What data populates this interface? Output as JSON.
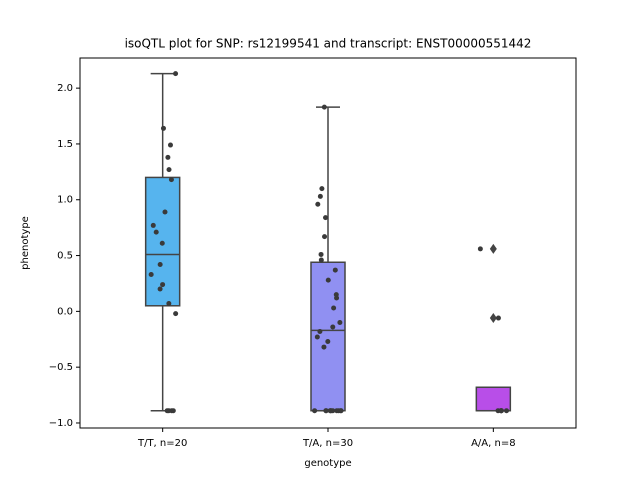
{
  "chart_data": {
    "type": "box",
    "title": "isoQTL plot for SNP: rs12199541 and transcript: ENST00000551442",
    "xlabel": "genotype",
    "ylabel": "phenotype",
    "categories": [
      "T/T, n=20",
      "T/A, n=30",
      "A/A, n=8"
    ],
    "ylim": [
      -1.045,
      2.27
    ],
    "yticks": [
      {
        "value": -1.0,
        "label": "−1.0"
      },
      {
        "value": -0.5,
        "label": "−0.5"
      },
      {
        "value": 0.0,
        "label": "0.0"
      },
      {
        "value": 0.5,
        "label": "0.5"
      },
      {
        "value": 1.0,
        "label": "1.0"
      },
      {
        "value": 1.5,
        "label": "1.5"
      },
      {
        "value": 2.0,
        "label": "2.0"
      }
    ],
    "boxes": [
      {
        "color": "#56b4ee",
        "whislo": -0.89,
        "q1": 0.05,
        "med": 0.51,
        "q3": 1.2,
        "whishi": 2.13,
        "outliers": [],
        "points": [
          2.13,
          1.64,
          1.49,
          1.38,
          1.27,
          1.18,
          0.89,
          0.77,
          0.71,
          0.61,
          0.42,
          0.33,
          0.24,
          0.2,
          0.07,
          -0.02,
          -0.89,
          -0.89,
          -0.89,
          -0.89
        ]
      },
      {
        "color": "#9090f2",
        "whislo": -0.89,
        "q1": -0.89,
        "med": -0.17,
        "q3": 0.44,
        "whishi": 1.83,
        "outliers": [],
        "points": [
          1.83,
          1.1,
          1.03,
          0.96,
          0.84,
          0.67,
          0.51,
          0.46,
          0.37,
          0.28,
          0.15,
          0.12,
          0.03,
          -0.1,
          -0.14,
          -0.18,
          -0.23,
          -0.27,
          -0.32,
          -0.89,
          -0.89,
          -0.89,
          -0.89,
          -0.89,
          -0.89,
          -0.89,
          -0.89,
          -0.89,
          -0.89,
          -0.89
        ]
      },
      {
        "color": "#b84ee8",
        "whislo": -0.89,
        "q1": -0.89,
        "med": -0.89,
        "q3": -0.68,
        "whishi": -0.68,
        "outliers": [
          0.56,
          -0.06
        ],
        "points": [
          0.56,
          -0.06,
          -0.89,
          -0.89,
          -0.89,
          -0.89,
          -0.89,
          -0.89
        ]
      }
    ]
  }
}
